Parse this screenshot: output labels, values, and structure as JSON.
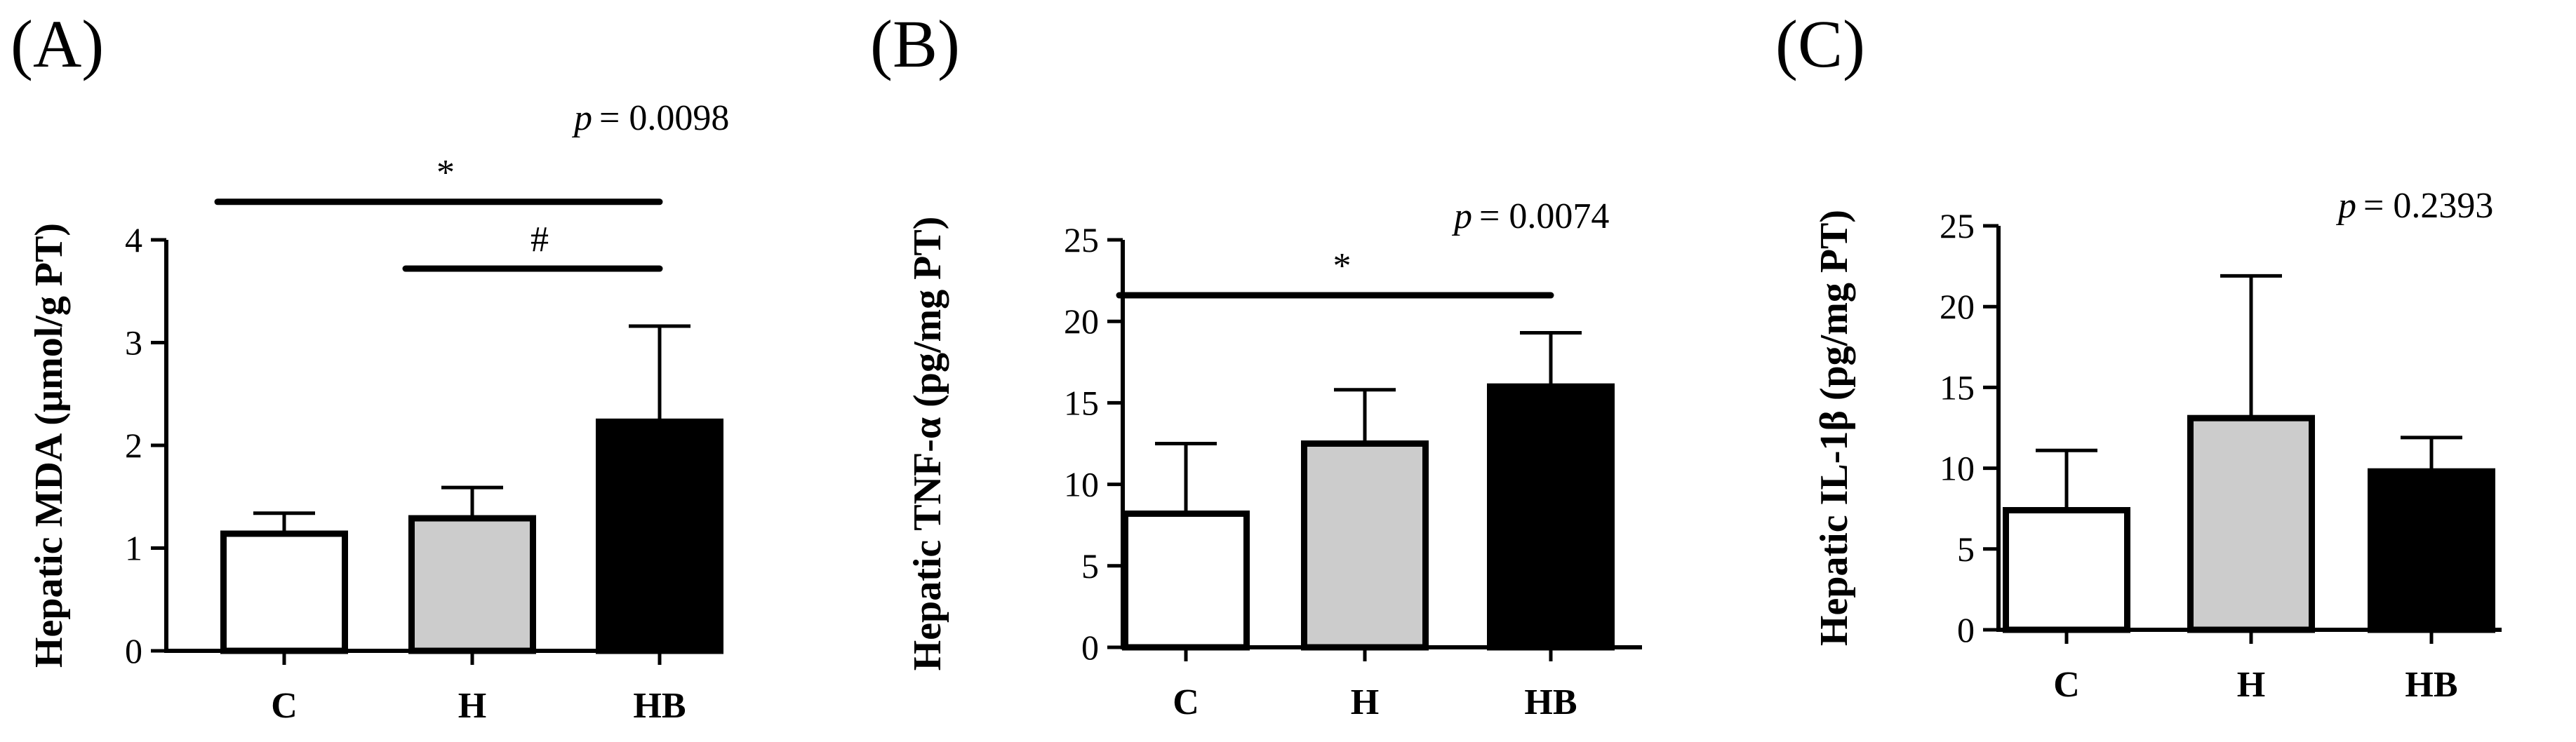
{
  "chart_data": [
    {
      "panel": "(A)",
      "type": "bar",
      "ylabel": "Hepatic MDA (µmol/g PT)",
      "categories": [
        "C",
        "H",
        "HB"
      ],
      "values": [
        1.14,
        1.29,
        2.23
      ],
      "errors": [
        0.2,
        0.3,
        0.93
      ],
      "colors": [
        "#ffffff",
        "#cccccc",
        "#000000"
      ],
      "ylim": [
        0,
        4
      ],
      "yticks": [
        "0",
        "1",
        "2",
        "3",
        "4"
      ],
      "p_prefix": "p",
      "p_value": "= 0.0098",
      "brackets": [
        {
          "from": 0,
          "to": 2,
          "label": "*",
          "level": 4.37
        },
        {
          "from": 1,
          "to": 2,
          "label": "#",
          "level": 3.72
        }
      ]
    },
    {
      "panel": "(B)",
      "type": "bar",
      "ylabel": "Hepatic TNF-α (pg/mg PT)",
      "categories": [
        "C",
        "H",
        "HB"
      ],
      "values": [
        8.2,
        12.5,
        16.0
      ],
      "errors": [
        4.3,
        3.3,
        3.3
      ],
      "colors": [
        "#ffffff",
        "#cccccc",
        "#000000"
      ],
      "ylim": [
        0,
        25
      ],
      "yticks": [
        "0",
        "5",
        "10",
        "15",
        "20",
        "25"
      ],
      "p_prefix": "p",
      "p_value": "= 0.0074",
      "brackets": [
        {
          "from": 0,
          "to": 2,
          "label": "*",
          "level": 21.6
        }
      ]
    },
    {
      "panel": "(C)",
      "type": "bar",
      "ylabel": "Hepatic IL-1β (pg/mg PT)",
      "categories": [
        "C",
        "H",
        "HB"
      ],
      "values": [
        7.4,
        13.1,
        9.8
      ],
      "errors": [
        3.7,
        8.8,
        2.1
      ],
      "colors": [
        "#ffffff",
        "#cccccc",
        "#000000"
      ],
      "ylim": [
        0,
        25
      ],
      "yticks": [
        "0",
        "5",
        "10",
        "15",
        "20",
        "25"
      ],
      "p_prefix": "p",
      "p_value": "= 0.2393",
      "brackets": []
    }
  ]
}
